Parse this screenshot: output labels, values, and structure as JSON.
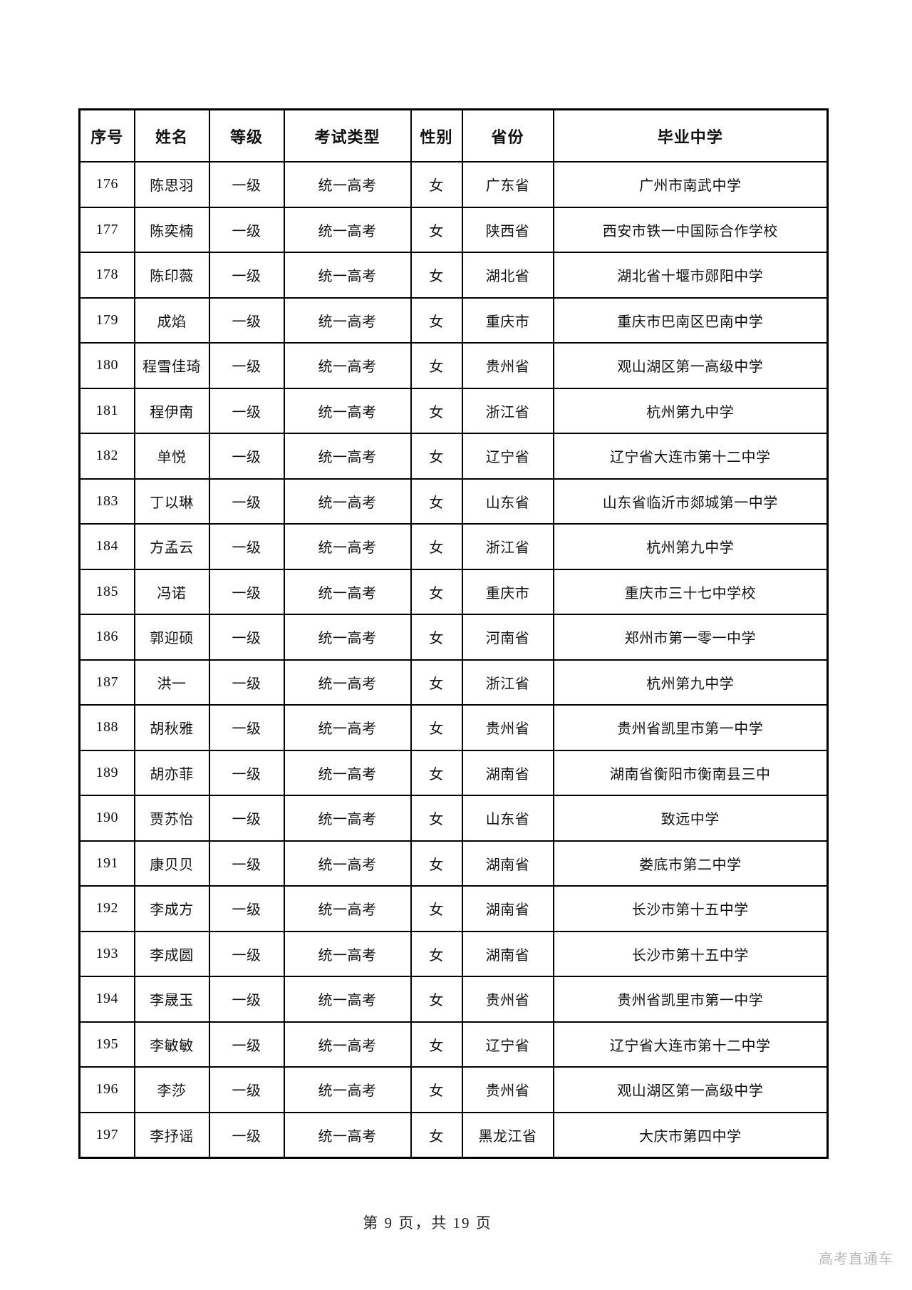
{
  "table": {
    "columns": [
      "序号",
      "姓名",
      "等级",
      "考试类型",
      "性别",
      "省份",
      "毕业中学"
    ],
    "rows": [
      [
        "176",
        "陈思羽",
        "一级",
        "统一高考",
        "女",
        "广东省",
        "广州市南武中学"
      ],
      [
        "177",
        "陈奕楠",
        "一级",
        "统一高考",
        "女",
        "陕西省",
        "西安市铁一中国际合作学校"
      ],
      [
        "178",
        "陈印薇",
        "一级",
        "统一高考",
        "女",
        "湖北省",
        "湖北省十堰市郧阳中学"
      ],
      [
        "179",
        "成焰",
        "一级",
        "统一高考",
        "女",
        "重庆市",
        "重庆市巴南区巴南中学"
      ],
      [
        "180",
        "程雪佳琦",
        "一级",
        "统一高考",
        "女",
        "贵州省",
        "观山湖区第一高级中学"
      ],
      [
        "181",
        "程伊南",
        "一级",
        "统一高考",
        "女",
        "浙江省",
        "杭州第九中学"
      ],
      [
        "182",
        "单悦",
        "一级",
        "统一高考",
        "女",
        "辽宁省",
        "辽宁省大连市第十二中学"
      ],
      [
        "183",
        "丁以琳",
        "一级",
        "统一高考",
        "女",
        "山东省",
        "山东省临沂市郯城第一中学"
      ],
      [
        "184",
        "方孟云",
        "一级",
        "统一高考",
        "女",
        "浙江省",
        "杭州第九中学"
      ],
      [
        "185",
        "冯诺",
        "一级",
        "统一高考",
        "女",
        "重庆市",
        "重庆市三十七中学校"
      ],
      [
        "186",
        "郭迎硕",
        "一级",
        "统一高考",
        "女",
        "河南省",
        "郑州市第一零一中学"
      ],
      [
        "187",
        "洪一",
        "一级",
        "统一高考",
        "女",
        "浙江省",
        "杭州第九中学"
      ],
      [
        "188",
        "胡秋雅",
        "一级",
        "统一高考",
        "女",
        "贵州省",
        "贵州省凯里市第一中学"
      ],
      [
        "189",
        "胡亦菲",
        "一级",
        "统一高考",
        "女",
        "湖南省",
        "湖南省衡阳市衡南县三中"
      ],
      [
        "190",
        "贾苏怡",
        "一级",
        "统一高考",
        "女",
        "山东省",
        "致远中学"
      ],
      [
        "191",
        "康贝贝",
        "一级",
        "统一高考",
        "女",
        "湖南省",
        "娄底市第二中学"
      ],
      [
        "192",
        "李成方",
        "一级",
        "统一高考",
        "女",
        "湖南省",
        "长沙市第十五中学"
      ],
      [
        "193",
        "李成圆",
        "一级",
        "统一高考",
        "女",
        "湖南省",
        "长沙市第十五中学"
      ],
      [
        "194",
        "李晟玉",
        "一级",
        "统一高考",
        "女",
        "贵州省",
        "贵州省凯里市第一中学"
      ],
      [
        "195",
        "李敏敏",
        "一级",
        "统一高考",
        "女",
        "辽宁省",
        "辽宁省大连市第十二中学"
      ],
      [
        "196",
        "李莎",
        "一级",
        "统一高考",
        "女",
        "贵州省",
        "观山湖区第一高级中学"
      ],
      [
        "197",
        "李抒谣",
        "一级",
        "统一高考",
        "女",
        "黑龙江省",
        "大庆市第四中学"
      ]
    ]
  },
  "footer": {
    "text": "第 9 页，共 19 页"
  },
  "watermark": {
    "text": "高考直通车"
  }
}
